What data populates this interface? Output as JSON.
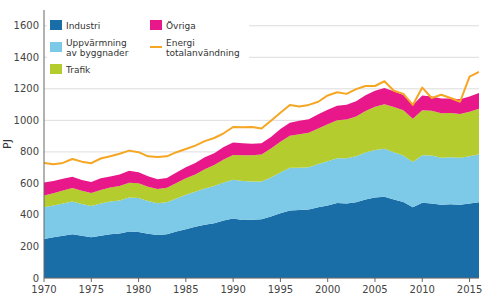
{
  "chart_data": {
    "type": "area",
    "stacked": true,
    "x": [
      1970,
      1971,
      1972,
      1973,
      1974,
      1975,
      1976,
      1977,
      1978,
      1979,
      1980,
      1981,
      1982,
      1983,
      1984,
      1985,
      1986,
      1987,
      1988,
      1989,
      1990,
      1991,
      1992,
      1993,
      1994,
      1995,
      1996,
      1997,
      1998,
      1999,
      2000,
      2001,
      2002,
      2003,
      2004,
      2005,
      2006,
      2007,
      2008,
      2009,
      2010,
      2011,
      2012,
      2013,
      2014,
      2015,
      2016
    ],
    "series": [
      {
        "name": "Industri",
        "color": "#1a6ea8",
        "values": [
          248,
          258,
          268,
          278,
          268,
          258,
          268,
          278,
          282,
          295,
          292,
          280,
          272,
          278,
          295,
          310,
          325,
          338,
          348,
          365,
          378,
          368,
          370,
          372,
          390,
          410,
          428,
          432,
          435,
          448,
          460,
          475,
          472,
          480,
          498,
          510,
          515,
          498,
          482,
          448,
          478,
          472,
          465,
          468,
          465,
          472,
          480
        ]
      },
      {
        "name": "Uppvärmning\nav byggnader",
        "color": "#7dc9e8",
        "values": [
          200,
          202,
          205,
          208,
          202,
          198,
          205,
          208,
          210,
          215,
          215,
          208,
          202,
          202,
          210,
          218,
          222,
          230,
          235,
          240,
          245,
          248,
          242,
          240,
          248,
          260,
          272,
          268,
          268,
          275,
          280,
          285,
          288,
          292,
          298,
          302,
          305,
          300,
          295,
          288,
          300,
          305,
          298,
          298,
          298,
          300,
          305
        ]
      },
      {
        "name": "Trafik",
        "color": "#b5cc2e",
        "values": [
          75,
          78,
          82,
          85,
          84,
          83,
          86,
          88,
          91,
          94,
          94,
          91,
          90,
          92,
          98,
          104,
          110,
          122,
          133,
          146,
          157,
          162,
          167,
          172,
          183,
          195,
          202,
          212,
          218,
          225,
          235,
          240,
          246,
          252,
          263,
          275,
          282,
          287,
          287,
          274,
          286,
          284,
          282,
          280,
          278,
          282,
          288
        ]
      },
      {
        "name": "Övriga",
        "color": "#e8178a",
        "values": [
          82,
          78,
          74,
          72,
          68,
          70,
          73,
          70,
          73,
          76,
          70,
          67,
          63,
          63,
          66,
          70,
          73,
          76,
          76,
          80,
          80,
          76,
          73,
          70,
          73,
          80,
          83,
          86,
          86,
          90,
          93,
          93,
          93,
          97,
          100,
          100,
          103,
          100,
          97,
          87,
          93,
          90,
          93,
          93,
          93,
          97,
          100
        ]
      },
      {
        "name": "Energi\ntotalanvändning",
        "color": "#f5a623",
        "type": "line",
        "values": [
          730,
          722,
          730,
          755,
          738,
          728,
          758,
          772,
          788,
          808,
          798,
          772,
          768,
          772,
          798,
          818,
          840,
          868,
          888,
          918,
          958,
          956,
          958,
          948,
          998,
          1048,
          1098,
          1088,
          1098,
          1118,
          1158,
          1178,
          1168,
          1198,
          1218,
          1218,
          1248,
          1188,
          1168,
          1098,
          1208,
          1142,
          1162,
          1142,
          1118,
          1278,
          1308
        ]
      }
    ],
    "ylabel": "PJ",
    "xlim": [
      1970,
      2016
    ],
    "xticks": [
      1970,
      1975,
      1980,
      1985,
      1990,
      1995,
      2000,
      2005,
      2010,
      2015
    ],
    "ylim": [
      0,
      1700
    ],
    "yticks": [
      0,
      200,
      400,
      600,
      800,
      1000,
      1200,
      1400,
      1600
    ],
    "grid": true,
    "legend": "upper left"
  }
}
